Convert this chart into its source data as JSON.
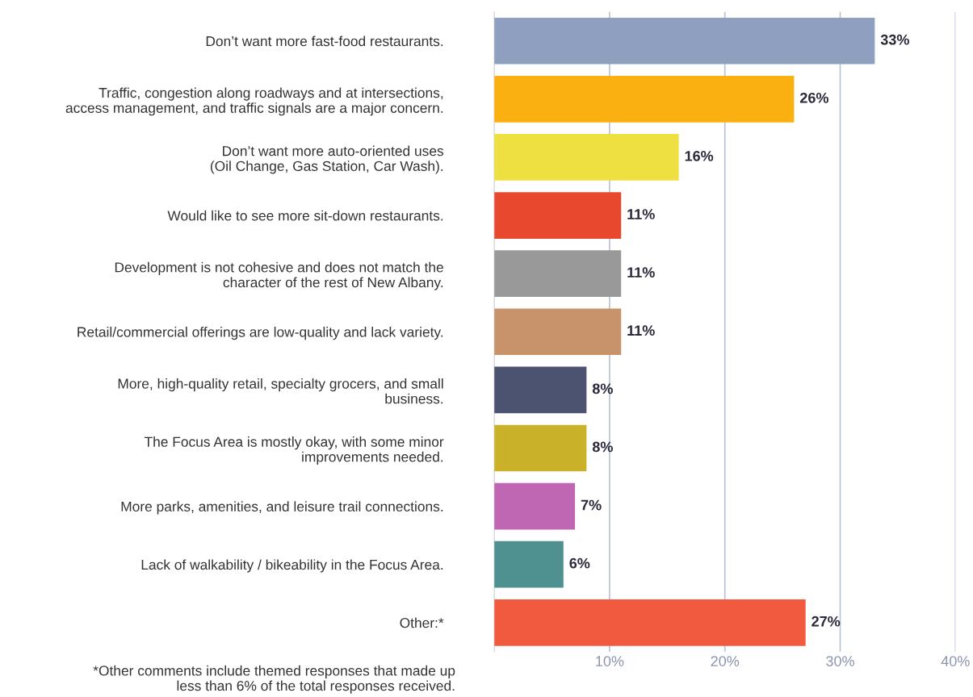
{
  "chart_data": {
    "type": "bar",
    "orientation": "horizontal",
    "categories": [
      "Don’t want more fast-food restaurants.",
      "Traffic, congestion along roadways and at intersections,\naccess management, and traffic signals are a major concern.",
      "Don’t want more auto-oriented uses\n(Oil Change, Gas Station, Car Wash).",
      "Would like to see more sit-down restaurants.",
      "Development is not cohesive and does not match the\ncharacter of the rest of New Albany.",
      "Retail/commercial offerings are low-quality and lack variety.",
      "More, high-quality retail, specialty grocers, and small\nbusiness.",
      "The Focus Area is mostly okay, with some minor\nimprovements needed.",
      "More parks, amenities, and leisure trail connections.",
      "Lack of walkability / bikeability in the Focus Area.",
      "Other:*"
    ],
    "values": [
      33,
      26,
      16,
      11,
      11,
      11,
      8,
      8,
      7,
      6,
      27
    ],
    "colors": [
      "#8e9fbf",
      "#fbb012",
      "#ede040",
      "#e8492e",
      "#999999",
      "#c8936a",
      "#4c5370",
      "#c9b22a",
      "#c067b4",
      "#4f9090",
      "#f25a3f"
    ],
    "value_labels": [
      "33%",
      "26%",
      "16%",
      "11%",
      "11%",
      "11%",
      "8%",
      "8%",
      "7%",
      "6%",
      "27%"
    ],
    "xlim": [
      0,
      40
    ],
    "xticks": [
      {
        "value": 10,
        "label": "10%"
      },
      {
        "value": 20,
        "label": "20%"
      },
      {
        "value": 30,
        "label": "30%"
      },
      {
        "value": 40,
        "label": "40%"
      }
    ],
    "grid": "x",
    "annotations": [
      "*Other comments include themed responses that made up\nless than 6% of the total responses received."
    ]
  }
}
